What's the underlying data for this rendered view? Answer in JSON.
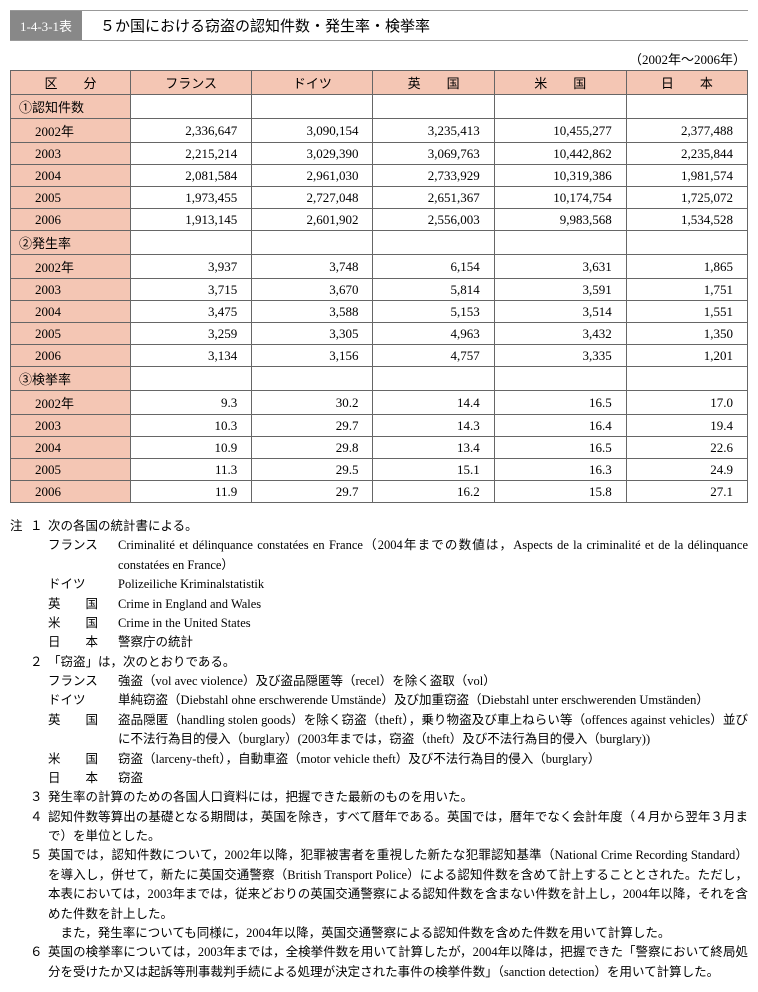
{
  "header": {
    "tag": "1-4-3-1表",
    "title": "５か国における窃盗の認知件数・発生率・検挙率",
    "period": "（2002年～2006年）"
  },
  "table": {
    "columns": [
      "区　　分",
      "フランス",
      "ドイツ",
      "英　　国",
      "米　　国",
      "日　　本"
    ],
    "sections": [
      {
        "label": "①認知件数",
        "rows": [
          {
            "y": "2002年",
            "v": [
              "2,336,647",
              "3,090,154",
              "3,235,413",
              "10,455,277",
              "2,377,488"
            ]
          },
          {
            "y": "2003",
            "v": [
              "2,215,214",
              "3,029,390",
              "3,069,763",
              "10,442,862",
              "2,235,844"
            ]
          },
          {
            "y": "2004",
            "v": [
              "2,081,584",
              "2,961,030",
              "2,733,929",
              "10,319,386",
              "1,981,574"
            ]
          },
          {
            "y": "2005",
            "v": [
              "1,973,455",
              "2,727,048",
              "2,651,367",
              "10,174,754",
              "1,725,072"
            ]
          },
          {
            "y": "2006",
            "v": [
              "1,913,145",
              "2,601,902",
              "2,556,003",
              "9,983,568",
              "1,534,528"
            ]
          }
        ]
      },
      {
        "label": "②発生率",
        "rows": [
          {
            "y": "2002年",
            "v": [
              "3,937",
              "3,748",
              "6,154",
              "3,631",
              "1,865"
            ]
          },
          {
            "y": "2003",
            "v": [
              "3,715",
              "3,670",
              "5,814",
              "3,591",
              "1,751"
            ]
          },
          {
            "y": "2004",
            "v": [
              "3,475",
              "3,588",
              "5,153",
              "3,514",
              "1,551"
            ]
          },
          {
            "y": "2005",
            "v": [
              "3,259",
              "3,305",
              "4,963",
              "3,432",
              "1,350"
            ]
          },
          {
            "y": "2006",
            "v": [
              "3,134",
              "3,156",
              "4,757",
              "3,335",
              "1,201"
            ]
          }
        ]
      },
      {
        "label": "③検挙率",
        "rows": [
          {
            "y": "2002年",
            "v": [
              "9.3",
              "30.2",
              "14.4",
              "16.5",
              "17.0"
            ]
          },
          {
            "y": "2003",
            "v": [
              "10.3",
              "29.7",
              "14.3",
              "16.4",
              "19.4"
            ]
          },
          {
            "y": "2004",
            "v": [
              "10.9",
              "29.8",
              "13.4",
              "16.5",
              "22.6"
            ]
          },
          {
            "y": "2005",
            "v": [
              "11.3",
              "29.5",
              "15.1",
              "16.3",
              "24.9"
            ]
          },
          {
            "y": "2006",
            "v": [
              "11.9",
              "29.7",
              "16.2",
              "15.8",
              "27.1"
            ]
          }
        ]
      }
    ]
  },
  "notes": {
    "lead": "注",
    "items": [
      {
        "num": "１",
        "text": "次の各国の統計書による。",
        "sources": [
          {
            "country": "フランス",
            "text": "Criminalité et délinquance constatées en France（2004年までの数値は，Aspects de la criminalité et de la délinquance constatées en France）"
          },
          {
            "country": "ドイツ",
            "text": "Polizeiliche Kriminalstatistik"
          },
          {
            "country": "英　　国",
            "text": "Crime in England and Wales"
          },
          {
            "country": "米　　国",
            "text": "Crime in the United States"
          },
          {
            "country": "日　　本",
            "text": "警察庁の統計"
          }
        ]
      },
      {
        "num": "２",
        "text": "「窃盗」は，次のとおりである。",
        "sources": [
          {
            "country": "フランス",
            "text": "強盗（vol avec violence）及び盗品隠匿等（recel）を除く盗取（vol）"
          },
          {
            "country": "ドイツ",
            "text": "単純窃盗（Diebstahl ohne erschwerende Umstände）及び加重窃盗（Diebstahl unter erschwerenden Umständen）"
          },
          {
            "country": "英　　国",
            "text": "盗品隠匿（handling stolen goods）を除く窃盗（theft），乗り物盗及び車上ねらい等（offences against vehicles）並びに不法行為目的侵入（burglary）(2003年までは，窃盗（theft）及び不法行為目的侵入（burglary))"
          },
          {
            "country": "米　　国",
            "text": "窃盗（larceny-theft），自動車盗（motor vehicle theft）及び不法行為目的侵入（burglary）"
          },
          {
            "country": "日　　本",
            "text": "窃盗"
          }
        ]
      },
      {
        "num": "３",
        "text": "発生率の計算のための各国人口資料には，把握できた最新のものを用いた。"
      },
      {
        "num": "４",
        "text": "認知件数等算出の基礎となる期間は，英国を除き，すべて暦年である。英国では，暦年でなく会計年度（４月から翌年３月まで）を単位とした。"
      },
      {
        "num": "５",
        "text": "英国では，認知件数について，2002年以降，犯罪被害者を重視した新たな犯罪認知基準（National Crime Recording Standard）を導入し，併せて，新たに英国交通警察（British Transport Police）による認知件数を含めて計上することとされた。ただし，本表においては，2003年までは，従来どおりの英国交通警察による認知件数を含まない件数を計上し，2004年以降，それを含めた件数を計上した。",
        "extra": "また，発生率についても同様に，2004年以降，英国交通警察による認知件数を含めた件数を用いて計算した。"
      },
      {
        "num": "６",
        "text": "英国の検挙率については，2003年までは，全検挙件数を用いて計算したが，2004年以降は，把握できた「警察において終局処分を受けたか又は起訴等刑事裁判手続による処理が決定された事件の検挙件数」（sanction detection）を用いて計算した。"
      }
    ]
  }
}
